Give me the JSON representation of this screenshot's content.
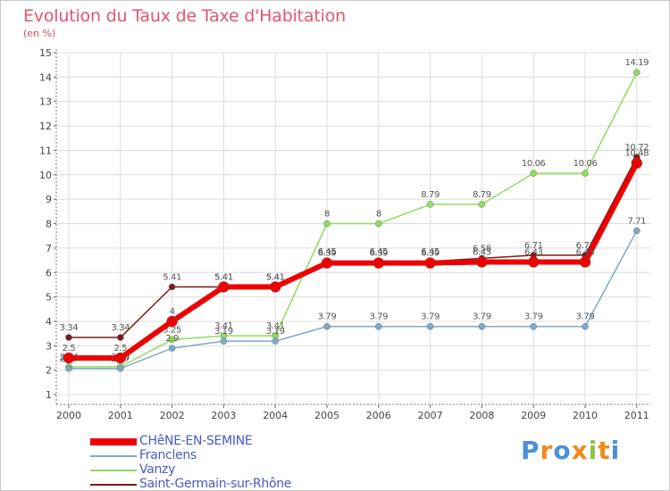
{
  "header": {
    "title": "Evolution du Taux de Taxe d'Habitation",
    "unit": "(en %)"
  },
  "logo": {
    "text": "Proxiti",
    "letters": [
      "P",
      "r",
      "o",
      "x",
      "i",
      "t",
      "i"
    ],
    "colors": [
      "#4a90d9",
      "#f08a1c",
      "#4a90d9",
      "#f08a1c",
      "#8bc34a",
      "#f08a1c",
      "#4a90d9"
    ]
  },
  "chart_data": {
    "type": "line",
    "title": "Evolution du Taux de Taxe d'Habitation",
    "ylabel": "(en %)",
    "xlabel": "",
    "ylim": [
      1,
      15
    ],
    "x": [
      "2000",
      "2001",
      "2002",
      "2003",
      "2004",
      "2005",
      "2006",
      "2007",
      "2008",
      "2009",
      "2010",
      "2011"
    ],
    "yticks": [
      "1",
      "2",
      "3",
      "4",
      "5",
      "6",
      "7",
      "8",
      "9",
      "10",
      "11",
      "12",
      "13",
      "14",
      "15"
    ],
    "series": [
      {
        "name": "Saint-Germain-sur-Rhône",
        "color": "#7b1a1a",
        "values": [
          3.34,
          3.34,
          5.41,
          5.41,
          5.41,
          6.45,
          6.45,
          6.45,
          6.58,
          6.71,
          6.71,
          10.72
        ],
        "labels": [
          "3.34",
          "3.34",
          "5.41",
          "5.41",
          "5.41",
          "6.45",
          "6.45",
          "6.45",
          "6.58",
          "6.71",
          "6.71",
          "10.72"
        ]
      },
      {
        "name": "Vanzy",
        "color": "#8fdc5e",
        "values": [
          2.14,
          2.14,
          3.25,
          3.41,
          3.41,
          8,
          8,
          8.79,
          8.79,
          10.06,
          10.06,
          14.19
        ],
        "labels": [
          "2.14",
          "2.14",
          "3.25",
          "3.41",
          "3.41",
          "8",
          "8",
          "8.79",
          "8.79",
          "10.06",
          "10.06",
          "14.19"
        ]
      },
      {
        "name": "Franclens",
        "color": "#7fa8c9",
        "values": [
          2.07,
          2.07,
          2.9,
          3.19,
          3.19,
          3.79,
          3.79,
          3.79,
          3.79,
          3.79,
          3.79,
          7.71
        ],
        "labels": [
          "2.07",
          "2.07",
          "2.9",
          "3.19",
          "3.19",
          "3.79",
          "3.79",
          "3.79",
          "3.79",
          "3.79",
          "3.79",
          "7.71"
        ]
      },
      {
        "name": "CHêNE-EN-SEMINE",
        "color": "#ee0000",
        "values": [
          2.5,
          2.5,
          4,
          5.41,
          5.41,
          6.39,
          6.39,
          6.39,
          6.43,
          6.43,
          6.43,
          10.48
        ],
        "labels": [
          "2.5",
          "2.5",
          "4",
          "5.41",
          "5.41",
          "6.39",
          "6.39",
          "6.39",
          "6.43",
          "6.43",
          "6.43",
          "10.48"
        ]
      }
    ],
    "legend_order": [
      "CHêNE-EN-SEMINE",
      "Franclens",
      "Vanzy",
      "Saint-Germain-sur-Rhône"
    ],
    "legend_position": "bottom-left",
    "grid": true
  }
}
